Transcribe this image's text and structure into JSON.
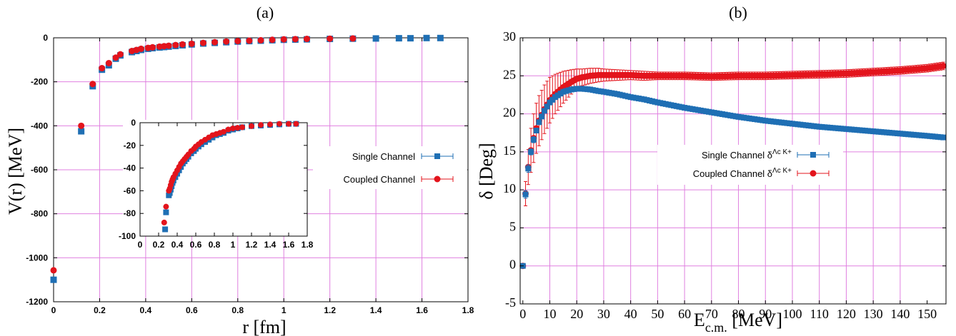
{
  "colors": {
    "single": "#1f6fb4",
    "coupled": "#e3141c",
    "grid": "#e080e0"
  },
  "chart_data": [
    {
      "type": "scatter",
      "panel": "(a)",
      "xlabel": "r [fm]",
      "ylabel": "V(r) [MeV]",
      "xlim": [
        0,
        1.8
      ],
      "ylim": [
        -1200,
        0
      ],
      "xticks": [
        "0",
        "0.2",
        "0.4",
        "0.6",
        "0.8",
        "1",
        "1.2",
        "1.4",
        "1.6",
        "1.8"
      ],
      "yticks": [
        "0",
        "-200",
        "-400",
        "-600",
        "-800",
        "-1000",
        "-1200"
      ],
      "grid": true,
      "legend": "right",
      "series": [
        {
          "name": "Single Channel",
          "marker": "square",
          "x": [
            0,
            0.12,
            0.17,
            0.21,
            0.24,
            0.27,
            0.29,
            0.34,
            0.36,
            0.38,
            0.41,
            0.43,
            0.46,
            0.48,
            0.5,
            0.53,
            0.56,
            0.6,
            0.65,
            0.7,
            0.75,
            0.8,
            0.85,
            0.9,
            0.95,
            1.0,
            1.05,
            1.1,
            1.2,
            1.3,
            1.4,
            1.5,
            1.55,
            1.62,
            1.68
          ],
          "y": [
            -1100,
            -425,
            -220,
            -145,
            -125,
            -95,
            -80,
            -65,
            -60,
            -55,
            -50,
            -47,
            -44,
            -42,
            -40,
            -37,
            -34,
            -30,
            -26,
            -23,
            -20,
            -17,
            -15,
            -13,
            -11,
            -9,
            -8,
            -7,
            -5,
            -4,
            -3,
            -2,
            -2,
            -1,
            -1
          ]
        },
        {
          "name": "Coupled Channel",
          "marker": "circle",
          "x": [
            0,
            0.12,
            0.17,
            0.21,
            0.24,
            0.27,
            0.29,
            0.34,
            0.36,
            0.38,
            0.41,
            0.43,
            0.46,
            0.48,
            0.5,
            0.53,
            0.56,
            0.6,
            0.65,
            0.7,
            0.75,
            0.8,
            0.85,
            0.9,
            0.95,
            1.0,
            1.05,
            1.1,
            1.2,
            1.3
          ],
          "y": [
            -1057,
            -400,
            -210,
            -138,
            -115,
            -90,
            -75,
            -60,
            -55,
            -50,
            -46,
            -43,
            -40,
            -38,
            -36,
            -33,
            -30,
            -27,
            -23,
            -20,
            -17,
            -15,
            -13,
            -11,
            -9,
            -7,
            -6,
            -5,
            -4,
            -3
          ]
        }
      ],
      "inset": {
        "xlim": [
          0,
          1.8
        ],
        "ylim": [
          -100,
          0
        ],
        "xticks": [
          "0",
          "0.2",
          "0.4",
          "0.6",
          "0.8",
          "1",
          "1.2",
          "1.4",
          "1.6",
          "1.8"
        ],
        "yticks": [
          "0",
          "-20",
          "-40",
          "-60",
          "-80",
          "-100"
        ],
        "series": [
          {
            "name": "Single Channel",
            "x": [
              0.27,
              0.28,
              0.31,
              0.32,
              0.33,
              0.34,
              0.35,
              0.36,
              0.38,
              0.4,
              0.42,
              0.44,
              0.46,
              0.48,
              0.5,
              0.52,
              0.55,
              0.58,
              0.6,
              0.63,
              0.66,
              0.7,
              0.74,
              0.78,
              0.82,
              0.86,
              0.9,
              0.95,
              1.0,
              1.05,
              1.1,
              1.2,
              1.3,
              1.4,
              1.5,
              1.6,
              1.68
            ],
            "y": [
              -94,
              -79,
              -64,
              -62,
              -59,
              -56,
              -53,
              -51,
              -48,
              -45,
              -42,
              -39,
              -36,
              -34,
              -32,
              -30,
              -27,
              -25,
              -23,
              -21,
              -19,
              -17,
              -15,
              -13,
              -11,
              -10,
              -9,
              -7,
              -6,
              -5,
              -4,
              -3,
              -2.5,
              -2,
              -1.5,
              -1,
              -1
            ]
          },
          {
            "name": "Coupled Channel",
            "x": [
              0.26,
              0.28,
              0.31,
              0.32,
              0.33,
              0.34,
              0.35,
              0.36,
              0.38,
              0.4,
              0.42,
              0.44,
              0.46,
              0.48,
              0.5,
              0.52,
              0.55,
              0.58,
              0.6,
              0.63,
              0.66,
              0.7,
              0.74,
              0.78,
              0.82,
              0.86,
              0.9,
              0.95,
              1.0,
              1.05,
              1.1,
              1.2,
              1.3,
              1.4,
              1.5,
              1.6,
              1.68
            ],
            "y": [
              -88,
              -74,
              -60,
              -58,
              -55,
              -52,
              -50,
              -48,
              -45,
              -42,
              -39,
              -36,
              -34,
              -32,
              -30,
              -28,
              -25,
              -23,
              -21,
              -19,
              -17,
              -15,
              -13,
              -11,
              -10,
              -9,
              -8,
              -6,
              -5,
              -4.5,
              -4,
              -3,
              -2,
              -1.5,
              -1,
              -1,
              -1
            ]
          }
        ]
      }
    },
    {
      "type": "line",
      "panel": "(b)",
      "xlabel": "E",
      "xlabel_sub": "c.m.",
      "xlabel_unit": " [MeV]",
      "ylabel": "δ",
      "ylabel_unit": " [Deg]",
      "xlim": [
        -1,
        157
      ],
      "ylim": [
        -5,
        30
      ],
      "xticks": [
        "0",
        "10",
        "20",
        "30",
        "40",
        "50",
        "60",
        "70",
        "80",
        "90",
        "100",
        "110",
        "120",
        "130",
        "140",
        "150"
      ],
      "yticks": [
        "-5",
        "0",
        "5",
        "10",
        "15",
        "20",
        "25",
        "30"
      ],
      "grid": true,
      "legend": "center-right",
      "series": [
        {
          "name": "Single Channel δ",
          "name_sup": "Λc K+",
          "marker": "square",
          "x": [
            0,
            1,
            2,
            3,
            4,
            5,
            6,
            8,
            10,
            12,
            15,
            18,
            20,
            22,
            25,
            28,
            30,
            35,
            40,
            45,
            50,
            60,
            70,
            80,
            90,
            100,
            110,
            120,
            130,
            140,
            150,
            156
          ],
          "y": [
            0,
            9.4,
            12.8,
            15,
            16.6,
            17.8,
            18.9,
            20.4,
            21.5,
            22.2,
            22.9,
            23.2,
            23.3,
            23.3,
            23.2,
            23.0,
            22.9,
            22.6,
            22.2,
            21.9,
            21.5,
            20.8,
            20.2,
            19.6,
            19.1,
            18.7,
            18.3,
            18.0,
            17.7,
            17.4,
            17.1,
            16.9
          ],
          "err": [
            0,
            0.5,
            0.5,
            0.4,
            0.4,
            0.3,
            0.3,
            0.3,
            0.2,
            0.2,
            0.2,
            0.2,
            0.2,
            0.2,
            0.2,
            0.2,
            0.2,
            0.2,
            0.2,
            0.2,
            0.2,
            0.2,
            0.2,
            0.2,
            0.2,
            0.2,
            0.2,
            0.2,
            0.2,
            0.2,
            0.2,
            0.2
          ]
        },
        {
          "name": "Coupled Channel δ",
          "name_sup": "Λc K+",
          "marker": "circle",
          "x": [
            0,
            1,
            2,
            3,
            4,
            5,
            6,
            8,
            10,
            12,
            15,
            18,
            20,
            22,
            25,
            28,
            30,
            35,
            40,
            45,
            50,
            60,
            70,
            80,
            90,
            100,
            110,
            120,
            130,
            140,
            150,
            156
          ],
          "y": [
            0,
            9.5,
            13,
            15.2,
            16.8,
            18.1,
            19.1,
            20.6,
            21.8,
            22.6,
            23.5,
            24.2,
            24.6,
            24.8,
            25.0,
            25.1,
            25.1,
            25.1,
            25.1,
            25.0,
            25.0,
            25.0,
            24.9,
            25.0,
            25.0,
            25.1,
            25.2,
            25.3,
            25.5,
            25.7,
            26.0,
            26.3
          ],
          "err": [
            0,
            1.6,
            2.3,
            2.9,
            3.2,
            3.3,
            3.3,
            3.2,
            3.0,
            2.6,
            2.1,
            1.6,
            1.3,
            1.1,
            1.0,
            0.9,
            0.8,
            0.7,
            0.6,
            0.6,
            0.5,
            0.5,
            0.5,
            0.5,
            0.5,
            0.5,
            0.5,
            0.5,
            0.5,
            0.5,
            0.5,
            0.5
          ]
        }
      ]
    }
  ]
}
